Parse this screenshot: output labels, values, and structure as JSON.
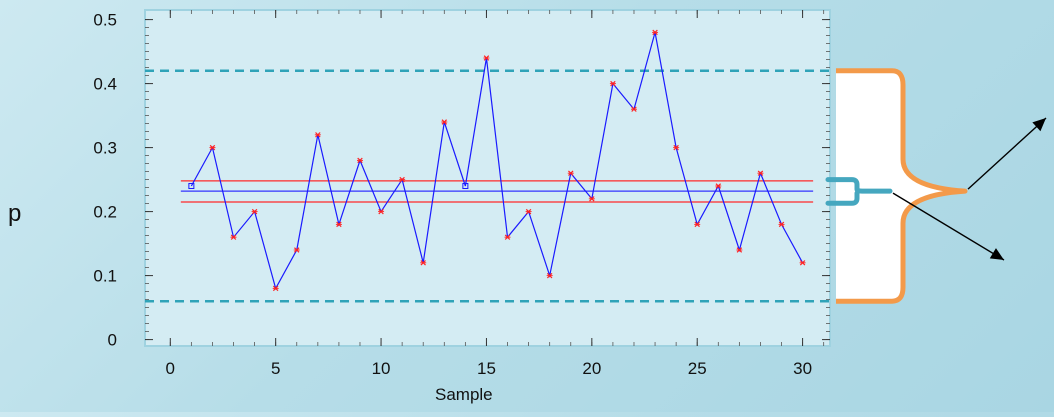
{
  "chart_data": {
    "type": "line",
    "title": "",
    "xlabel": "Sample",
    "ylabel": "p",
    "xlim": [
      -1.2,
      31.3
    ],
    "ylim": [
      -0.01,
      0.515
    ],
    "x_ticks": [
      0,
      5,
      10,
      15,
      20,
      25,
      30
    ],
    "y_ticks": [
      0,
      0.1,
      0.2,
      0.3,
      0.4,
      0.5
    ],
    "x_tick_labels": [
      "0",
      "5",
      "10",
      "15",
      "20",
      "25",
      "30"
    ],
    "y_tick_labels": [
      "0",
      "0.1",
      "0.2",
      "0.3",
      "0.4",
      "0.5"
    ],
    "grid": false,
    "series": [
      {
        "x": [
          1,
          2,
          3,
          4,
          5,
          6,
          7,
          8,
          9,
          10,
          11,
          12,
          13,
          14,
          15,
          16,
          17,
          18,
          19,
          20,
          21,
          22,
          23,
          24,
          25,
          26,
          27,
          28,
          29,
          30
        ],
        "values": [
          0.24,
          0.3,
          0.16,
          0.2,
          0.08,
          0.14,
          0.32,
          0.18,
          0.28,
          0.2,
          0.25,
          0.12,
          0.34,
          0.24,
          0.44,
          0.16,
          0.2,
          0.1,
          0.26,
          0.22,
          0.4,
          0.36,
          0.48,
          0.3,
          0.18,
          0.24,
          0.14,
          0.26,
          0.18,
          0.12
        ],
        "color": "#1a1aff",
        "square_marker_points": [
          1,
          14
        ],
        "marker_color": "#ff2222"
      }
    ],
    "reference_lines": [
      {
        "kind": "dashed",
        "y": 0.42,
        "color": "#2fa3b8"
      },
      {
        "kind": "dashed",
        "y": 0.06,
        "color": "#2fa3b8"
      },
      {
        "kind": "solid",
        "y": 0.248,
        "color": "#ff2a2a"
      },
      {
        "kind": "solid",
        "y": 0.232,
        "color": "#3333ff"
      },
      {
        "kind": "solid",
        "y": 0.215,
        "color": "#ff2a2a"
      }
    ],
    "annotations": {
      "large_brace_color": "#f39a4a",
      "small_brace_color": "#45a7bf",
      "arrow_color": "#000000"
    },
    "plot_background": "#d4ecf3",
    "frame_color": "#9fd2e0"
  }
}
